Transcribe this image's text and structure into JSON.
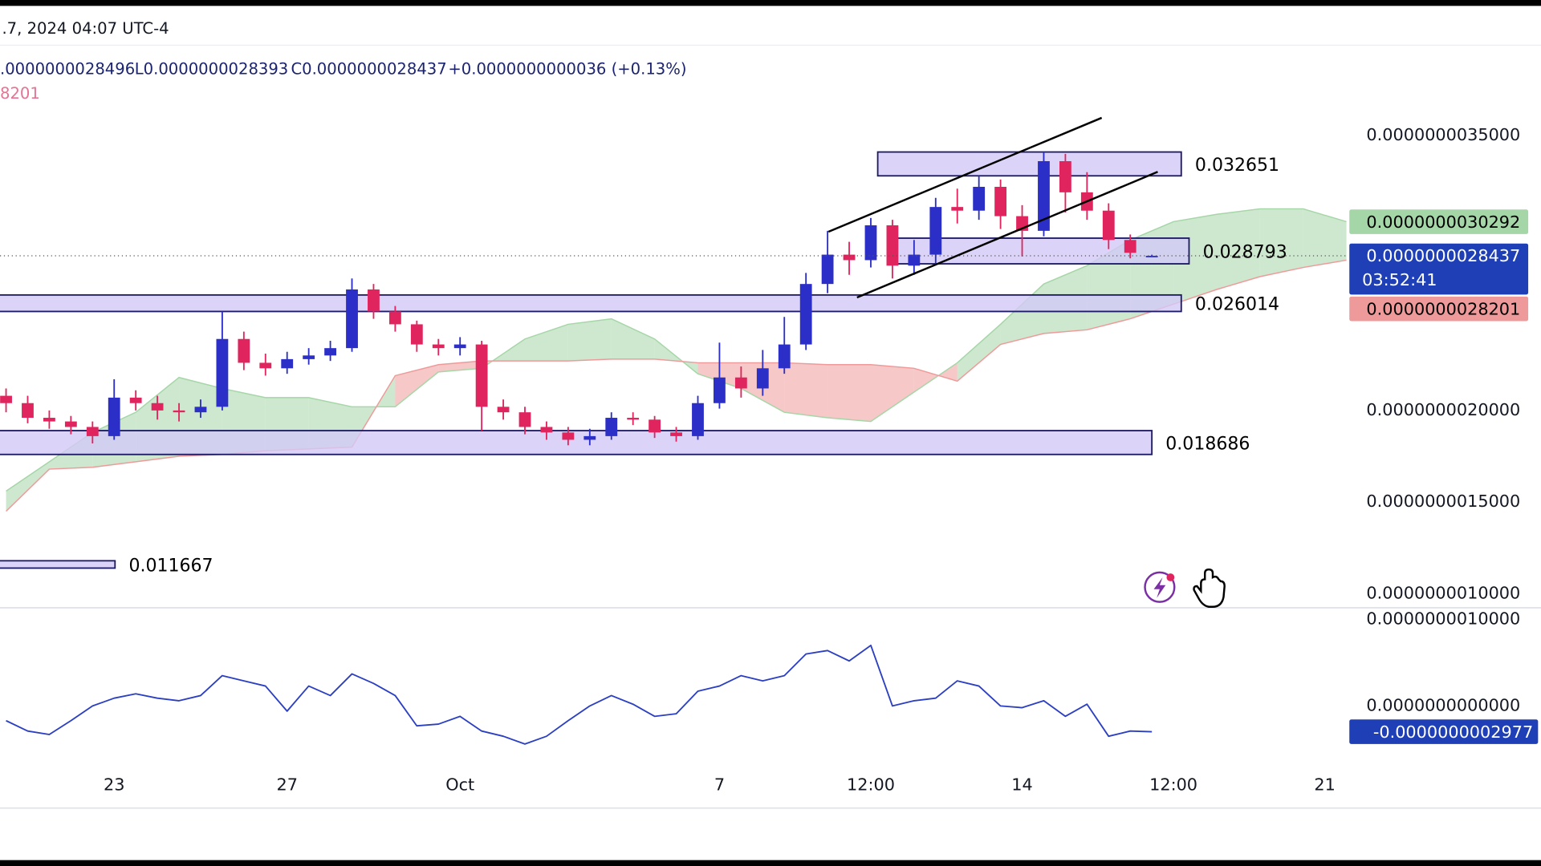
{
  "header": {
    "date": ".7, 2024 04:07 UTC-4",
    "ohlc": [
      ".0000000028496",
      "L0.0000000028393",
      "C0.0000000028437",
      "+0.0000000000036 (+0.13%)"
    ],
    "indicator": "8201"
  },
  "chart_data": [
    {
      "type": "candlestick",
      "x": [
        20.5,
        21,
        21.5,
        22,
        22.5,
        23,
        23.5,
        24,
        24.5,
        25,
        25.5,
        26,
        26.5,
        27,
        27.5,
        28,
        28.5,
        29,
        29.5,
        30,
        30.5,
        31,
        31.5,
        32,
        32.5,
        33,
        33.5,
        34,
        34.5,
        35,
        35.5,
        36,
        36.5,
        37,
        37.5,
        38,
        38.5,
        39,
        39.5,
        40,
        40.5,
        41,
        41.5,
        42,
        42.5,
        43,
        43.5,
        44,
        44.5,
        45,
        45.5,
        46,
        46.5,
        47
      ],
      "open": [
        2.08e-09,
        2.04e-09,
        1.96e-09,
        1.94e-09,
        1.91e-09,
        1.86e-09,
        2.07e-09,
        2.04e-09,
        2e-09,
        1.99e-09,
        2.02e-09,
        2.39e-09,
        2.26e-09,
        2.23e-09,
        2.28e-09,
        2.3e-09,
        2.34e-09,
        2.66e-09,
        2.54e-09,
        2.47e-09,
        2.36e-09,
        2.34e-09,
        2.36e-09,
        2.02e-09,
        1.99e-09,
        1.91e-09,
        1.88e-09,
        1.84e-09,
        1.86e-09,
        1.96e-09,
        1.95e-09,
        1.88e-09,
        1.86e-09,
        2.04e-09,
        2.18e-09,
        2.12e-09,
        2.23e-09,
        2.36e-09,
        2.69e-09,
        2.85e-09,
        2.82e-09,
        3.01e-09,
        2.79e-09,
        2.85e-09,
        3.11e-09,
        3.09e-09,
        3.22e-09,
        3.06e-09,
        2.98e-09,
        3.36e-09,
        3.19e-09,
        3.09e-09,
        2.93e-09,
        2.8401e-09
      ],
      "high": [
        2.12e-09,
        2.08e-09,
        2e-09,
        1.97e-09,
        1.94e-09,
        2.17e-09,
        2.11e-09,
        2.08e-09,
        2.04e-09,
        2.06e-09,
        2.54e-09,
        2.43e-09,
        2.31e-09,
        2.32e-09,
        2.34e-09,
        2.38e-09,
        2.72e-09,
        2.69e-09,
        2.57e-09,
        2.49e-09,
        2.39e-09,
        2.4e-09,
        2.38e-09,
        2.06e-09,
        2.02e-09,
        1.94e-09,
        1.91e-09,
        1.9e-09,
        1.99e-09,
        1.99e-09,
        1.97e-09,
        1.91e-09,
        2.08e-09,
        2.37e-09,
        2.24e-09,
        2.33e-09,
        2.51e-09,
        2.75e-09,
        2.98e-09,
        2.92e-09,
        3.05e-09,
        3.04e-09,
        2.93e-09,
        3.16e-09,
        3.21e-09,
        3.28e-09,
        3.26e-09,
        3.12e-09,
        3.41e-09,
        3.4e-09,
        3.3e-09,
        3.13e-09,
        2.96e-09,
        2.8496e-09
      ],
      "low": [
        1.99e-09,
        1.93e-09,
        1.9e-09,
        1.87e-09,
        1.82e-09,
        1.84e-09,
        2e-09,
        1.95e-09,
        1.94e-09,
        1.96e-09,
        2e-09,
        2.22e-09,
        2.19e-09,
        2.2e-09,
        2.25e-09,
        2.27e-09,
        2.32e-09,
        2.5e-09,
        2.43e-09,
        2.32e-09,
        2.3e-09,
        2.3e-09,
        1.89e-09,
        1.95e-09,
        1.87e-09,
        1.84e-09,
        1.81e-09,
        1.81e-09,
        1.84e-09,
        1.92e-09,
        1.85e-09,
        1.83e-09,
        1.84e-09,
        2.01e-09,
        2.07e-09,
        2.08e-09,
        2.2e-09,
        2.33e-09,
        2.64e-09,
        2.74e-09,
        2.78e-09,
        2.72e-09,
        2.74e-09,
        2.8e-09,
        3.02e-09,
        3.04e-09,
        2.99e-09,
        2.84e-09,
        2.95e-09,
        3.08e-09,
        3.04e-09,
        2.88e-09,
        2.83e-09,
        2.8393e-09
      ],
      "close": [
        2.04e-09,
        1.96e-09,
        1.94e-09,
        1.91e-09,
        1.86e-09,
        2.07e-09,
        2.04e-09,
        2e-09,
        1.99e-09,
        2.02e-09,
        2.39e-09,
        2.26e-09,
        2.23e-09,
        2.28e-09,
        2.3e-09,
        2.34e-09,
        2.66e-09,
        2.54e-09,
        2.47e-09,
        2.36e-09,
        2.34e-09,
        2.36e-09,
        2.02e-09,
        1.99e-09,
        1.91e-09,
        1.88e-09,
        1.84e-09,
        1.86e-09,
        1.96e-09,
        1.95e-09,
        1.88e-09,
        1.86e-09,
        2.04e-09,
        2.18e-09,
        2.12e-09,
        2.23e-09,
        2.36e-09,
        2.69e-09,
        2.85e-09,
        2.82e-09,
        3.01e-09,
        2.79e-09,
        2.85e-09,
        3.11e-09,
        3.09e-09,
        3.22e-09,
        3.06e-09,
        2.98e-09,
        3.36e-09,
        3.19e-09,
        3.09e-09,
        2.93e-09,
        2.86e-09,
        2.8437e-09
      ],
      "up_color": "#2b2fc7",
      "down_color": "#e0245e",
      "xlim": [
        20.36,
        56
      ],
      "ylim": [
        9.45e-10,
        3.65e-09
      ],
      "yticks": [
        {
          "value": 3.5e-09,
          "label": "0.0000000035000"
        },
        {
          "value": 2e-09,
          "label": "0.0000000020000"
        },
        {
          "value": 1.5e-09,
          "label": "0.0000000015000"
        },
        {
          "value": 1e-09,
          "label": "0.0000000010000"
        }
      ],
      "zones": [
        {
          "label": "0.032651",
          "top": 3.41e-09,
          "bottom": 3.28e-09,
          "x": [
            40.66,
            47.68
          ]
        },
        {
          "label": "0.028793",
          "top": 2.94e-09,
          "bottom": 2.8e-09,
          "x": [
            41.0,
            47.86
          ]
        },
        {
          "label": "0.026014",
          "top": 2.63e-09,
          "bottom": 2.54e-09,
          "x": [
            20.3,
            47.68
          ]
        },
        {
          "label": "0.018686",
          "top": 1.89e-09,
          "bottom": 1.76e-09,
          "x": [
            20.3,
            47.0
          ]
        },
        {
          "label": "0.011667",
          "top": 1.18e-09,
          "bottom": 1.14e-09,
          "x": [
            20.3,
            23.02
          ]
        }
      ],
      "cloud": {
        "x": [
          20.5,
          21.5,
          22.5,
          23.5,
          24.5,
          25.5,
          26.5,
          27.5,
          28.5,
          29.5,
          30.5,
          31.5,
          32.5,
          33.5,
          34.5,
          35.5,
          36.5,
          37.5,
          38.5,
          39.5,
          40.5,
          41.5,
          42.5,
          43.5,
          44.5,
          45.5,
          46.5,
          47.5,
          48.5,
          49.5,
          50.5,
          51.5
        ],
        "span_a": [
          1.56e-09,
          1.72e-09,
          1.88e-09,
          1.99e-09,
          2.18e-09,
          2.12e-09,
          2.07e-09,
          2.07e-09,
          2.02e-09,
          2.02e-09,
          2.21e-09,
          2.23e-09,
          2.39e-09,
          2.47e-09,
          2.5e-09,
          2.39e-09,
          2.2e-09,
          2.12e-09,
          1.99e-09,
          1.96e-09,
          1.94e-09,
          2.1e-09,
          2.26e-09,
          2.47e-09,
          2.69e-09,
          2.79e-09,
          2.93e-09,
          3.03e-09,
          3.07e-09,
          3.1e-09,
          3.1e-09,
          3.03e-09
        ],
        "span_b": [
          1.45e-09,
          1.68e-09,
          1.69e-09,
          1.72e-09,
          1.75e-09,
          1.76e-09,
          1.78e-09,
          1.79e-09,
          1.8e-09,
          2.19e-09,
          2.25e-09,
          2.27e-09,
          2.27e-09,
          2.27e-09,
          2.28e-09,
          2.28e-09,
          2.26e-09,
          2.26e-09,
          2.26e-09,
          2.25e-09,
          2.25e-09,
          2.23e-09,
          2.16e-09,
          2.36e-09,
          2.42e-09,
          2.44e-09,
          2.5e-09,
          2.58e-09,
          2.66e-09,
          2.73e-09,
          2.78e-09,
          2.82e-09
        ],
        "up_color": "#a5d6a7",
        "down_color": "#ef9a9a"
      },
      "price_labels": [
        {
          "value": 3.0292e-09,
          "label": "0.0000000030292",
          "color": "#a5d6a7",
          "text_color": "#000000"
        },
        {
          "value": 2.8437e-09,
          "label": "0.0000000028437",
          "color": "#1e3fb5",
          "text_color": "#ffffff",
          "countdown": "03:52:41"
        },
        {
          "value": 2.8201e-09,
          "label": "0.0000000028201",
          "color": "#ef9a9a",
          "text_color": "#000000"
        }
      ]
    },
    {
      "type": "line",
      "x": [
        20.5,
        21,
        21.5,
        22,
        22.5,
        23,
        23.5,
        24,
        24.5,
        25,
        25.5,
        26,
        26.5,
        27,
        27.5,
        28,
        28.5,
        29,
        29.5,
        30,
        30.5,
        31,
        31.5,
        32,
        32.5,
        33,
        33.5,
        34,
        34.5,
        35,
        35.5,
        36,
        36.5,
        37,
        37.5,
        38,
        38.5,
        39,
        39.5,
        40,
        40.5,
        41,
        41.5,
        42,
        42.5,
        43,
        43.5,
        44,
        44.5,
        45,
        45.5,
        46,
        46.5,
        47
      ],
      "values": [
        -1.7e-10,
        -2.9e-10,
        -3.3e-10,
        -1.7e-10,
        0,
        9e-11,
        1.4e-10,
        9e-11,
        6e-11,
        1.2e-10,
        3.5e-10,
        2.9e-10,
        2.3e-10,
        -6e-11,
        2.3e-10,
        1.2e-10,
        3.7e-10,
        2.6e-10,
        1.2e-10,
        -2.3e-10,
        -2.1e-10,
        -1.2e-10,
        -2.9e-10,
        -3.5e-10,
        -4.4e-10,
        -3.5e-10,
        -1.7e-10,
        0,
        1.2e-10,
        2e-11,
        -1.2e-10,
        -9e-11,
        1.7e-10,
        2.3e-10,
        3.5e-10,
        2.9e-10,
        3.5e-10,
        6e-10,
        6.4e-10,
        5.2e-10,
        7e-10,
        0,
        6e-11,
        9e-11,
        2.9e-10,
        2.3e-10,
        0,
        -2e-11,
        6e-11,
        -1.2e-10,
        2e-11,
        -3.5e-10,
        -2.9e-10,
        -2.977e-10
      ],
      "color": "#2b3fc2",
      "xlim": [
        20.36,
        56
      ],
      "ylim": [
        -7.6e-10,
        1.1e-09
      ],
      "yticks": [
        {
          "value": 1e-09,
          "label": "0.0000000010000"
        },
        {
          "value": 0,
          "label": "0.0000000000000"
        }
      ],
      "last_label": {
        "value": -2.977e-10,
        "label": "-0.0000000002977",
        "color": "#1e3fb5",
        "text_color": "#ffffff"
      },
      "xticks": [
        {
          "value": 23,
          "label": "23"
        },
        {
          "value": 27,
          "label": "27"
        },
        {
          "value": 31,
          "label": "Oct"
        },
        {
          "value": 37,
          "label": "7"
        },
        {
          "value": 40.5,
          "label": "12:00"
        },
        {
          "value": 44,
          "label": "14"
        },
        {
          "value": 47.5,
          "label": "12:00"
        },
        {
          "value": 51,
          "label": "21"
        }
      ]
    }
  ]
}
